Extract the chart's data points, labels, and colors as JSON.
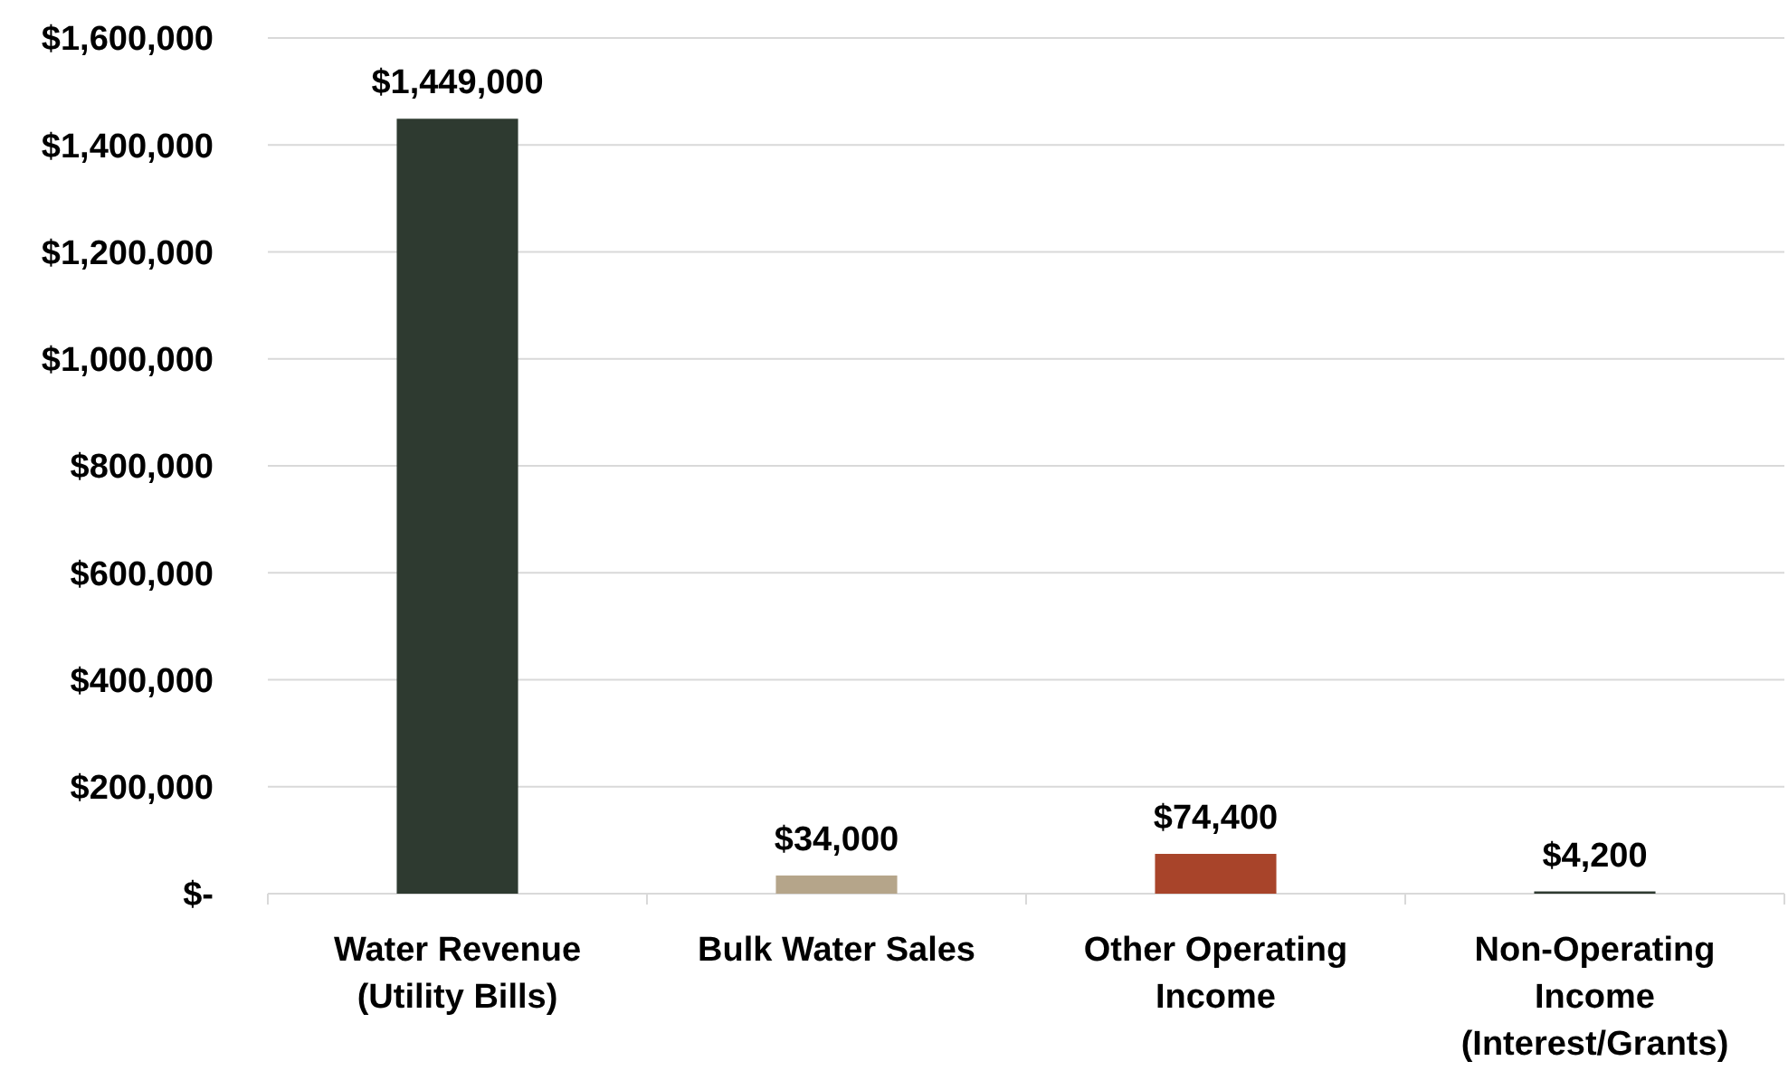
{
  "chart_data": {
    "type": "bar",
    "categories": [
      "Water Revenue (Utility Bills)",
      "Bulk Water Sales",
      "Other Operating Income",
      "Non-Operating Income (Interest/Grants)"
    ],
    "values": [
      1449000,
      34000,
      74400,
      4200
    ],
    "colors": [
      "#2e3a30",
      "#b5a58a",
      "#a8442a",
      "#2e3a30"
    ],
    "value_labels": [
      "$1,449,000",
      "$34,000",
      "$74,400",
      "$4,200"
    ],
    "ylim": [
      0,
      1600000
    ],
    "yticks": [
      {
        "value": 0,
        "label": "$-"
      },
      {
        "value": 200000,
        "label": "$200,000"
      },
      {
        "value": 400000,
        "label": "$400,000"
      },
      {
        "value": 600000,
        "label": "$600,000"
      },
      {
        "value": 800000,
        "label": "$800,000"
      },
      {
        "value": 1000000,
        "label": "$1,000,000"
      },
      {
        "value": 1200000,
        "label": "$1,200,000"
      },
      {
        "value": 1400000,
        "label": "$1,400,000"
      },
      {
        "value": 1600000,
        "label": "$1,600,000"
      }
    ],
    "grid": true
  }
}
